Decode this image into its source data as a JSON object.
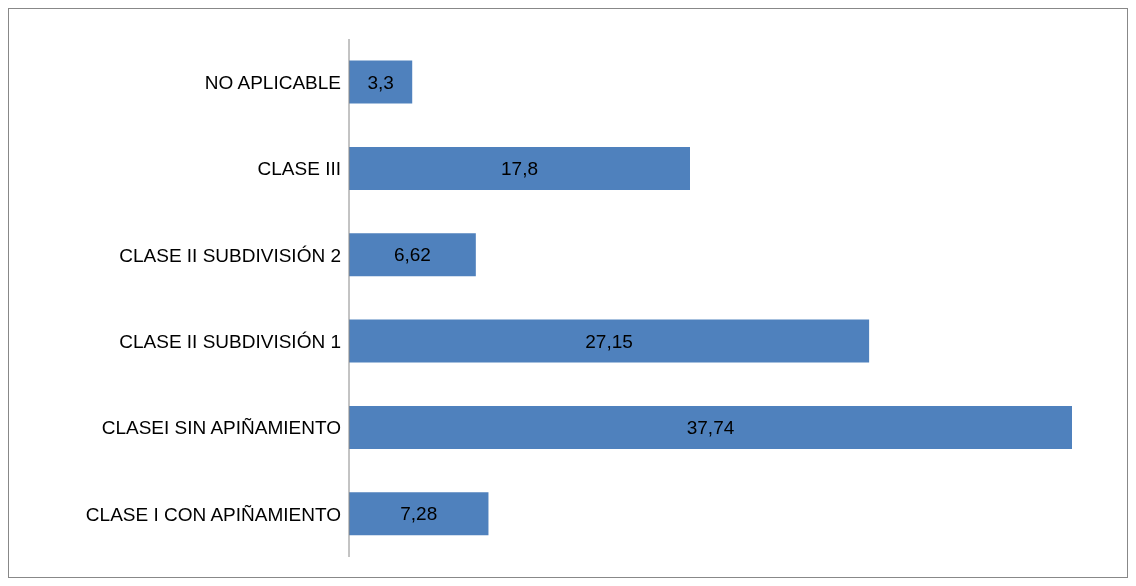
{
  "chart_data": {
    "type": "bar",
    "orientation": "horizontal",
    "categories": [
      "NO APLICABLE",
      "CLASE III",
      "CLASE II SUBDIVISIÓN 2",
      "CLASE II SUBDIVISIÓN 1",
      "CLASEI SIN APIÑAMIENTO",
      "CLASE I CON APIÑAMIENTO"
    ],
    "values": [
      3.3,
      17.8,
      6.62,
      27.15,
      37.74,
      7.28
    ],
    "value_labels": [
      "3,3",
      "17,8",
      "6,62",
      "27,15",
      "37,74",
      "7,28"
    ],
    "color": "#4f81bd",
    "legend": false
  }
}
